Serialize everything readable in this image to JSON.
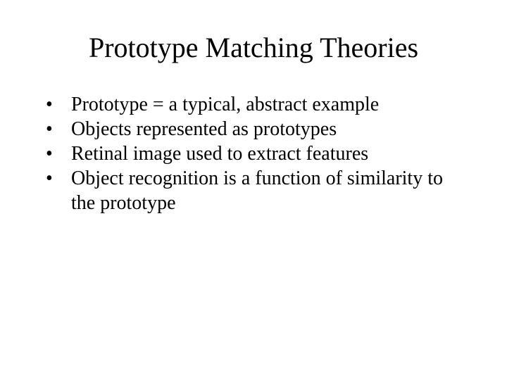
{
  "slide": {
    "title": "Prototype Matching Theories",
    "bullets": [
      "Prototype = a typical, abstract example",
      "Objects represented as prototypes",
      "Retinal image used to extract features",
      "Object recognition is a function of similarity to the prototype"
    ],
    "title_fontsize": 40,
    "body_fontsize": 28,
    "font_family": "Times New Roman",
    "text_color": "#000000",
    "background_color": "#ffffff"
  }
}
